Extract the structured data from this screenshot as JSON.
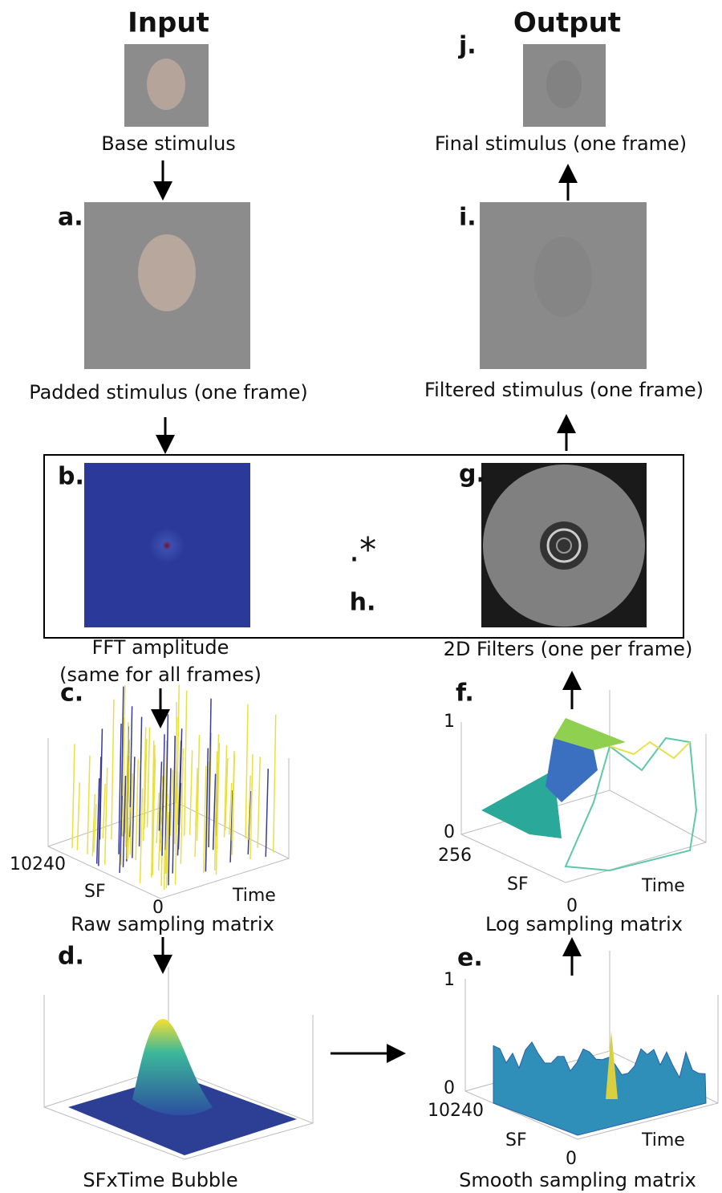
{
  "headers": {
    "input": "Input",
    "output": "Output"
  },
  "base": {
    "caption": "Base stimulus"
  },
  "a": {
    "letter": "a.",
    "caption": "Padded stimulus (one frame)"
  },
  "b": {
    "letter": "b.",
    "caption": [
      "FFT amplitude",
      "(same for all frames)"
    ]
  },
  "h": {
    "letter": "h.",
    "operator": ".*"
  },
  "g": {
    "letter": "g.",
    "caption": "2D Filters (one per frame)"
  },
  "c": {
    "letter": "c.",
    "caption": "Raw sampling matrix",
    "axes": {
      "sf_max": "10240",
      "sf_label": "SF",
      "time_label": "Time",
      "origin": "0"
    }
  },
  "d": {
    "letter": "d.",
    "caption": "SFxTime Bubble"
  },
  "e": {
    "letter": "e.",
    "caption": "Smooth sampling matrix",
    "axes": {
      "z_top": "1",
      "z_bottom": "0",
      "sf_max": "10240",
      "sf_label": "SF",
      "time_label": "Time",
      "origin": "0"
    }
  },
  "f": {
    "letter": "f.",
    "caption": "Log sampling matrix",
    "axes": {
      "z_top": "1",
      "z_bottom": "0",
      "sf_max": "256",
      "sf_label": "SF",
      "time_label": "Time",
      "origin": "0"
    }
  },
  "i": {
    "letter": "i.",
    "caption": "Filtered stimulus (one frame)"
  },
  "j": {
    "letter": "j.",
    "caption": "Final stimulus (one frame)"
  }
}
